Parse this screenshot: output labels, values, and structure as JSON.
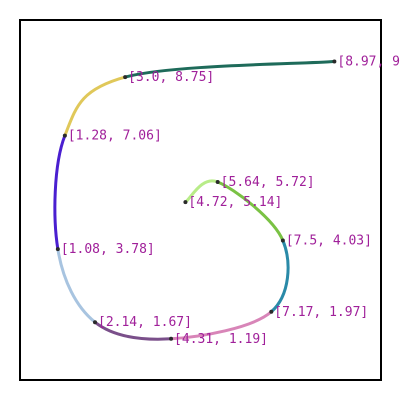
{
  "chart_data": {
    "type": "line",
    "title": "",
    "xlabel": "",
    "ylabel": "",
    "xlim": [
      0,
      10.3
    ],
    "ylim": [
      0,
      10.4
    ],
    "axes_visible": false,
    "grid": false,
    "legend": "none",
    "label_color": "#a0209a",
    "points": [
      {
        "x": 8.97,
        "y": 9.2,
        "label": "[8.97, 9"
      },
      {
        "x": 3.0,
        "y": 8.75,
        "label": "[3.0, 8.75]"
      },
      {
        "x": 1.28,
        "y": 7.06,
        "label": "[1.28, 7.06]"
      },
      {
        "x": 1.08,
        "y": 3.78,
        "label": "[1.08, 3.78]"
      },
      {
        "x": 2.14,
        "y": 1.67,
        "label": "[2.14, 1.67]"
      },
      {
        "x": 4.31,
        "y": 1.19,
        "label": "[4.31, 1.19]"
      },
      {
        "x": 7.17,
        "y": 1.97,
        "label": "[7.17, 1.97]"
      },
      {
        "x": 7.5,
        "y": 4.03,
        "label": "[7.5, 4.03]"
      },
      {
        "x": 5.64,
        "y": 5.72,
        "label": "[5.64, 5.72]"
      },
      {
        "x": 4.72,
        "y": 5.14,
        "label": "[4.72, 5.14]"
      }
    ],
    "segment_colors": [
      "#1e6b5a",
      "#e0c85a",
      "#4a1fd0",
      "#a8c4e0",
      "#7a4f8a",
      "#d885b8",
      "#2a8aa8",
      "#7ac244",
      "#b8ec88"
    ]
  }
}
